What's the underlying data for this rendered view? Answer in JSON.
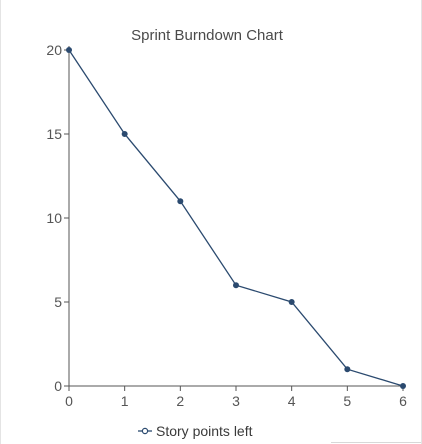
{
  "chart_data": {
    "type": "line",
    "title": "Sprint Burndown Chart",
    "xlabel": "",
    "ylabel": "",
    "x": [
      0,
      1,
      2,
      3,
      4,
      5,
      6
    ],
    "series": [
      {
        "name": "Story points left",
        "values": [
          20,
          15,
          11,
          6,
          5,
          1,
          0
        ]
      }
    ],
    "xlim": [
      0,
      6
    ],
    "ylim": [
      0,
      20
    ],
    "x_ticks": [
      0,
      1,
      2,
      3,
      4,
      5,
      6
    ],
    "y_ticks": [
      0,
      5,
      10,
      15,
      20
    ],
    "grid": false,
    "legend_position": "bottom",
    "colors": {
      "series": "#2b4a6f",
      "axis": "#555555"
    }
  }
}
